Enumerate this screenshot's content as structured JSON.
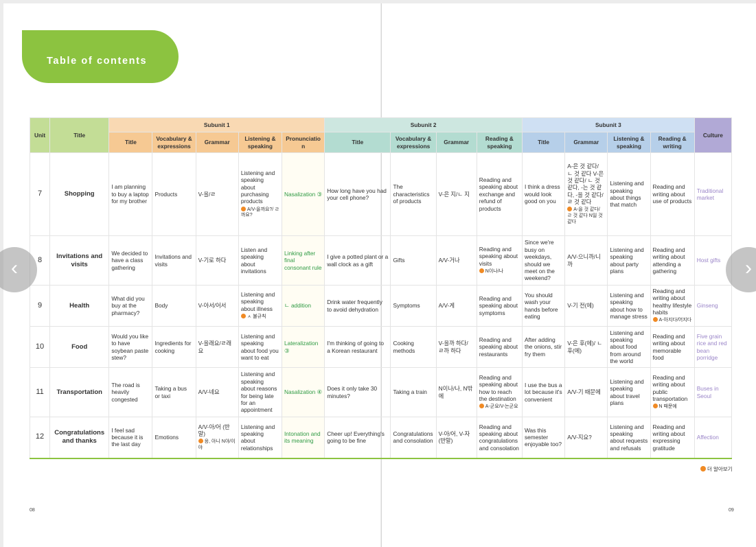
{
  "toc_title": "Table of contents",
  "headers": {
    "unit": "Unit",
    "title": "Title",
    "culture": "Culture",
    "subunit1": "Subunit 1",
    "subunit2": "Subunit 2",
    "subunit3": "Subunit 3",
    "s1": [
      "Title",
      "Vocabulary & expressions",
      "Grammar",
      "Listening & speaking",
      "Pronunciation"
    ],
    "s2": [
      "Title",
      "Vocabulary & expressions",
      "Grammar",
      "Reading & speaking"
    ],
    "s3": [
      "Title",
      "Grammar",
      "Listening & speaking",
      "Reading & writing"
    ]
  },
  "rows": [
    {
      "unit": "7",
      "title": "Shopping",
      "s1_title": "I am planning to buy a laptop for my brother",
      "s1_vocab": "Products",
      "s1_grammar": "V-을/ㄹ",
      "s1_ls": "Listening and speaking about purchasing products",
      "s1_ls_note": "A/V-을까요?/ ㄹ까요?",
      "s1_pron": "Nasalization ③",
      "s2_title": "How long have you had your cell phone?",
      "s2_vocab": "The characteristics of products",
      "s2_grammar": "V-은 지/ㄴ 지",
      "s2_rs": "Reading and speaking about exchange and refund of products",
      "s3_title": "I think a dress would look good on you",
      "s3_grammar": "A-은 것 같다/ ㄴ 것 같다 V-은 것 같다/ ㄴ 것 같다, -는 것 같다, -을 것 같다/ ㄹ 것 같다",
      "s3_grammar_note": "A-을 것 같다/ ㄹ 것 같다 N일 것 같다",
      "s3_ls": "Listening and speaking about things that match",
      "s3_rw": "Reading and writing about use of products",
      "s3_rw_note": "",
      "culture": "Traditional market"
    },
    {
      "unit": "8",
      "title": "Invitations and visits",
      "s1_title": "We decided to have a class gathering",
      "s1_vocab": "Invitations and visits",
      "s1_grammar": "V-기로 하다",
      "s1_ls": "Listen and speaking about invitations",
      "s1_ls_note": "",
      "s1_pron": "Linking after final consonant rule",
      "s2_title": "I give a potted plant or a wall clock as a gift",
      "s2_vocab": "Gifts",
      "s2_grammar": "A/V-거나",
      "s2_rs": "Reading and speaking about visits",
      "s2_rs_note": "N이나/나",
      "s3_title": "Since we're busy on weekdays, should we meet on the weekend?",
      "s3_grammar": "A/V-으니까/니까",
      "s3_grammar_note": "",
      "s3_ls": "Listening and speaking about party plans",
      "s3_rw": "Reading and writing about attending a gathering",
      "s3_rw_note": "",
      "culture": "Host gifts"
    },
    {
      "unit": "9",
      "title": "Health",
      "s1_title": "What did you buy at the pharmacy?",
      "s1_vocab": "Body",
      "s1_grammar": "V-아서/어서",
      "s1_ls": "Listening and speaking about illness",
      "s1_ls_note": "ㅅ 불규칙",
      "s1_pron": "ㄴ addition",
      "s2_title": "Drink water frequently to avoid dehydration",
      "s2_vocab": "Symptoms",
      "s2_grammar": "A/V-게",
      "s2_rs": "Reading and speaking about symptoms",
      "s2_rs_note": "",
      "s3_title": "You should wash your hands before eating",
      "s3_grammar": "V-기 전(에)",
      "s3_grammar_note": "",
      "s3_ls": "Listening and speaking about how to manage stress",
      "s3_rw": "Reading and writing about healthy lifestyle habits",
      "s3_rw_note": "A-아지다/어지다",
      "culture": "Ginseng"
    },
    {
      "unit": "10",
      "title": "Food",
      "s1_title": "Would you like to have soybean paste stew?",
      "s1_vocab": "Ingredients for cooking",
      "s1_grammar": "V-을래요/ㄹ래요",
      "s1_ls": "Listening and speaking about food you want to eat",
      "s1_ls_note": "",
      "s1_pron": "Lateralization ③",
      "s2_title": "I'm thinking of going to a Korean restaurant",
      "s2_vocab": "Cooking methods",
      "s2_grammar": "V-을까 하다/ ㄹ까 하다",
      "s2_rs": "Reading and speaking about restaurants",
      "s2_rs_note": "",
      "s3_title": "After adding the onions, stir fry them",
      "s3_grammar": "V-은 후(에)/ ㄴ 후(에)",
      "s3_grammar_note": "",
      "s3_ls": "Listening and speaking about food from around the world",
      "s3_rw": "Reading and writing about memorable food",
      "s3_rw_note": "",
      "culture": "Five grain rice and red bean porridge"
    },
    {
      "unit": "11",
      "title": "Transportation",
      "s1_title": "The road is heavily congested",
      "s1_vocab": "Taking a bus or taxi",
      "s1_grammar": "A/V-네요",
      "s1_ls": "Listening and speaking about reasons for being late for an appointment",
      "s1_ls_note": "",
      "s1_pron": "Nasalization ④",
      "s2_title": "Does it only take 30 minutes?",
      "s2_vocab": "Taking a train",
      "s2_grammar": "N이나/나, N밖에",
      "s2_rs": "Reading and speaking about how to reach the destination",
      "s2_rs_note": "A-군요/V-는군요",
      "s3_title": "I use the bus a lot because it's convenient",
      "s3_grammar": "A/V-기 때문에",
      "s3_grammar_note": "",
      "s3_ls": "Listening and speaking about travel plans",
      "s3_rw": "Reading and writing about public transportation",
      "s3_rw_note": "N 때문에",
      "culture": "Buses in Seoul"
    },
    {
      "unit": "12",
      "title": "Congratulations and thanks",
      "s1_title": "I feel sad because it is the last day",
      "s1_vocab": "Emotions",
      "s1_grammar": "A/V-아/어 (반말)",
      "s1_grammar_note": "응, 아니 N야/이야",
      "s1_ls": "Listening and speaking about relationships",
      "s1_ls_note": "",
      "s1_pron": "Intonation and its meaning",
      "s2_title": "Cheer up! Everything's going to be fine",
      "s2_vocab": "Congratulations and consolation",
      "s2_grammar": "V-아/어, V-자(반말)",
      "s2_rs": "Reading and speaking about congratulations and consolation",
      "s2_rs_note": "",
      "s3_title": "Was this semester enjoyable too?",
      "s3_grammar": "A/V-지요?",
      "s3_grammar_note": "",
      "s3_ls": "Listening and speaking about requests and refusals",
      "s3_rw": "Reading and writing about expressing gratitude",
      "s3_rw_note": "",
      "culture": "Affection"
    }
  ],
  "more_label": "더 알아보기",
  "page_left": "08",
  "page_right": "09",
  "nav": {
    "prev": "‹",
    "next": "›"
  },
  "colors": {
    "green": "#8cc340",
    "orange_note": "#f08a24",
    "pron_green": "#2e9a43",
    "culture_purple": "#9a85c8"
  }
}
